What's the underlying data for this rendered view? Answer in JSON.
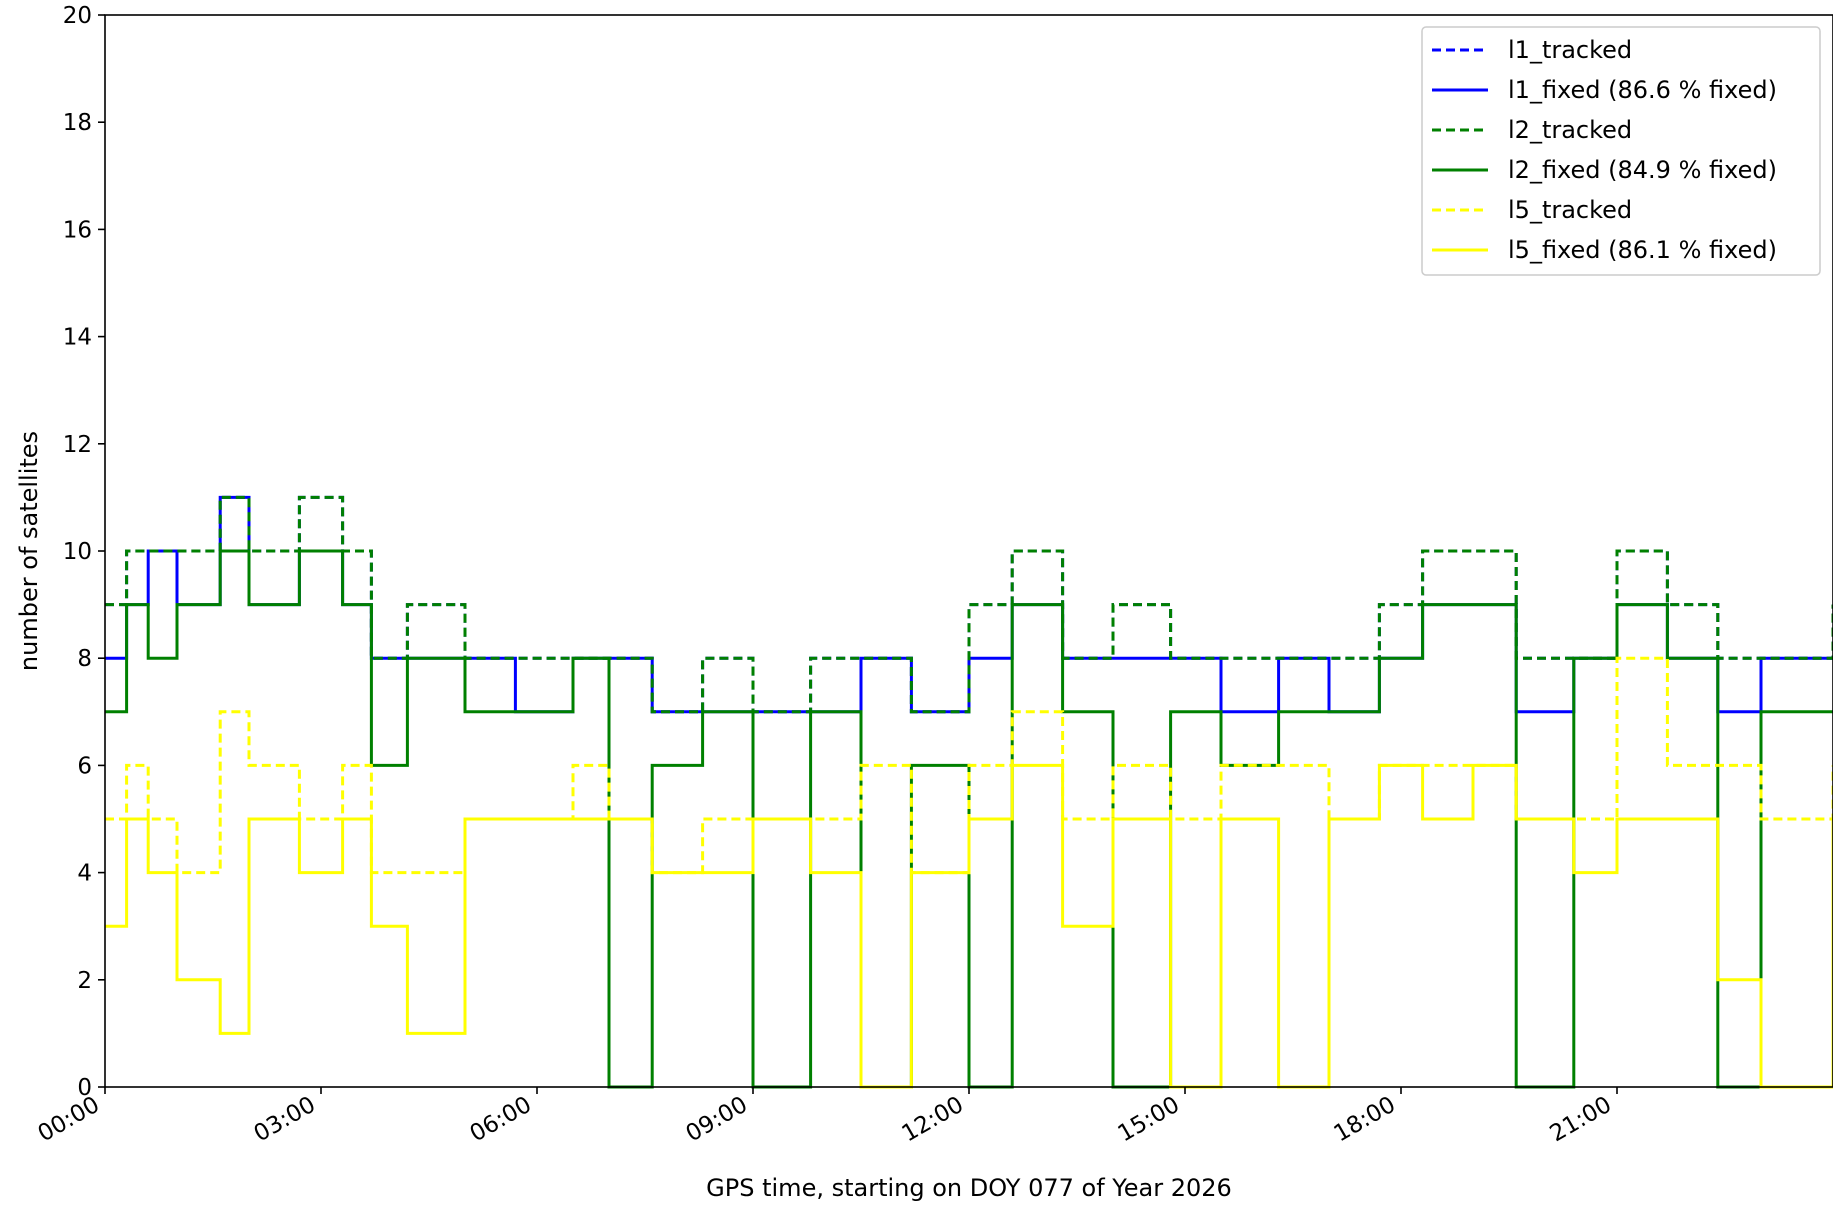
{
  "chart_data": {
    "type": "line",
    "title": "",
    "xlabel": "GPS time, starting on DOY 077 of Year 2026",
    "ylabel": "number of satellites",
    "xlim": [
      0,
      24
    ],
    "ylim": [
      0,
      20
    ],
    "x_tick_labels": [
      "00:00",
      "03:00",
      "06:00",
      "09:00",
      "12:00",
      "15:00",
      "18:00",
      "21:00"
    ],
    "x_tick_hours": [
      0,
      3,
      6,
      9,
      12,
      15,
      18,
      21
    ],
    "y_ticks": [
      0,
      2,
      4,
      6,
      8,
      10,
      12,
      14,
      16,
      18,
      20
    ],
    "legend_position": "upper right",
    "grid": false,
    "series": [
      {
        "name": "l1_tracked",
        "color": "#0000ff",
        "dash": true,
        "x": [
          0,
          0.3,
          0.6,
          1.0,
          1.6,
          2.0,
          2.7,
          3.3,
          3.7,
          4.2,
          5.0,
          5.7,
          6.5,
          7.0,
          7.6,
          8.3,
          9.0,
          9.8,
          10.5,
          11.2,
          12.0,
          12.6,
          13.3,
          14.0,
          14.8,
          15.5,
          16.3,
          17.0,
          17.7,
          18.3,
          19.0,
          19.6,
          20.4,
          21.0,
          21.7,
          22.4,
          23.0,
          24.0
        ],
        "y": [
          9,
          10,
          10,
          10,
          11,
          10,
          11,
          10,
          8,
          9,
          8,
          8,
          8,
          8,
          7,
          8,
          7,
          8,
          8,
          7,
          9,
          10,
          8,
          9,
          8,
          8,
          8,
          8,
          9,
          10,
          10,
          8,
          8,
          10,
          9,
          8,
          8,
          9
        ]
      },
      {
        "name": "l1_fixed (86.6 % fixed)",
        "color": "#0000ff",
        "dash": false,
        "x": [
          0,
          0.3,
          0.6,
          1.0,
          1.6,
          2.0,
          2.7,
          3.3,
          3.7,
          4.2,
          5.0,
          5.7,
          6.5,
          7.0,
          7.6,
          8.3,
          9.0,
          9.8,
          10.5,
          11.2,
          12.0,
          12.6,
          13.3,
          14.0,
          14.8,
          15.5,
          16.3,
          17.0,
          17.7,
          18.3,
          19.0,
          19.6,
          20.4,
          21.0,
          21.7,
          22.4,
          23.0,
          24.0
        ],
        "y": [
          8,
          9,
          10,
          9,
          11,
          9,
          10,
          9,
          8,
          8,
          8,
          7,
          8,
          8,
          7,
          7,
          7,
          7,
          8,
          7,
          8,
          9,
          8,
          8,
          8,
          7,
          8,
          7,
          8,
          9,
          9,
          7,
          8,
          9,
          8,
          7,
          8,
          8
        ]
      },
      {
        "name": "l2_tracked",
        "color": "#008000",
        "dash": true,
        "x": [
          0,
          0.3,
          0.6,
          1.0,
          1.6,
          2.0,
          2.7,
          3.3,
          3.7,
          4.2,
          5.0,
          5.7,
          6.5,
          7.0,
          7.6,
          8.3,
          9.0,
          9.8,
          10.5,
          11.2,
          12.0,
          12.6,
          13.3,
          14.0,
          14.8,
          15.5,
          16.3,
          17.0,
          17.7,
          18.3,
          19.0,
          19.6,
          20.4,
          21.0,
          21.7,
          22.4,
          23.0,
          24.0
        ],
        "y": [
          9,
          10,
          10,
          10,
          11,
          10,
          11,
          10,
          8,
          9,
          8,
          8,
          8,
          8,
          7,
          8,
          7,
          8,
          8,
          7,
          9,
          10,
          8,
          9,
          8,
          8,
          8,
          8,
          9,
          10,
          10,
          8,
          8,
          10,
          9,
          8,
          8,
          9
        ]
      },
      {
        "name": "l2_fixed (84.9 % fixed)",
        "color": "#008000",
        "dash": false,
        "x": [
          0,
          0.3,
          0.6,
          1.0,
          1.6,
          2.0,
          2.7,
          3.3,
          3.7,
          4.2,
          5.0,
          5.7,
          6.5,
          7.0,
          7.6,
          8.3,
          9.0,
          9.8,
          10.5,
          11.2,
          12.0,
          12.6,
          13.3,
          14.0,
          14.8,
          15.5,
          16.3,
          17.0,
          17.7,
          18.3,
          19.0,
          19.6,
          20.4,
          21.0,
          21.7,
          22.4,
          23.0,
          24.0
        ],
        "y": [
          7,
          9,
          8,
          9,
          10,
          9,
          10,
          9,
          6,
          8,
          7,
          7,
          8,
          0,
          6,
          7,
          0,
          7,
          0,
          6,
          0,
          9,
          7,
          0,
          7,
          6,
          7,
          7,
          8,
          9,
          9,
          0,
          8,
          9,
          8,
          0,
          7,
          7
        ]
      },
      {
        "name": "l5_tracked",
        "color": "#ffff00",
        "dash": true,
        "x": [
          0,
          0.3,
          0.6,
          1.0,
          1.6,
          2.0,
          2.7,
          3.3,
          3.7,
          4.2,
          5.0,
          5.7,
          6.5,
          7.0,
          7.6,
          8.3,
          9.0,
          9.8,
          10.5,
          11.2,
          12.0,
          12.6,
          13.3,
          14.0,
          14.8,
          15.5,
          16.3,
          17.0,
          17.7,
          18.3,
          19.0,
          19.6,
          20.4,
          21.0,
          21.7,
          22.4,
          23.0,
          24.0
        ],
        "y": [
          5,
          6,
          5,
          4,
          7,
          6,
          5,
          6,
          4,
          4,
          5,
          5,
          6,
          5,
          4,
          5,
          5,
          5,
          6,
          4,
          6,
          7,
          5,
          6,
          5,
          6,
          6,
          5,
          6,
          6,
          6,
          5,
          5,
          8,
          6,
          6,
          5,
          6
        ]
      },
      {
        "name": "l5_fixed (86.1 % fixed)",
        "color": "#ffff00",
        "dash": false,
        "x": [
          0,
          0.3,
          0.6,
          1.0,
          1.6,
          2.0,
          2.7,
          3.3,
          3.7,
          4.2,
          5.0,
          5.7,
          6.5,
          7.0,
          7.6,
          8.3,
          9.0,
          9.8,
          10.5,
          11.2,
          12.0,
          12.6,
          13.3,
          14.0,
          14.8,
          15.5,
          16.3,
          17.0,
          17.7,
          18.3,
          19.0,
          19.6,
          20.4,
          21.0,
          21.7,
          22.4,
          23.0,
          24.0
        ],
        "y": [
          3,
          5,
          4,
          2,
          1,
          5,
          4,
          5,
          3,
          1,
          5,
          5,
          5,
          5,
          4,
          4,
          5,
          4,
          0,
          4,
          5,
          6,
          3,
          5,
          0,
          5,
          0,
          5,
          6,
          5,
          6,
          5,
          4,
          5,
          5,
          2,
          0,
          5
        ]
      }
    ]
  }
}
